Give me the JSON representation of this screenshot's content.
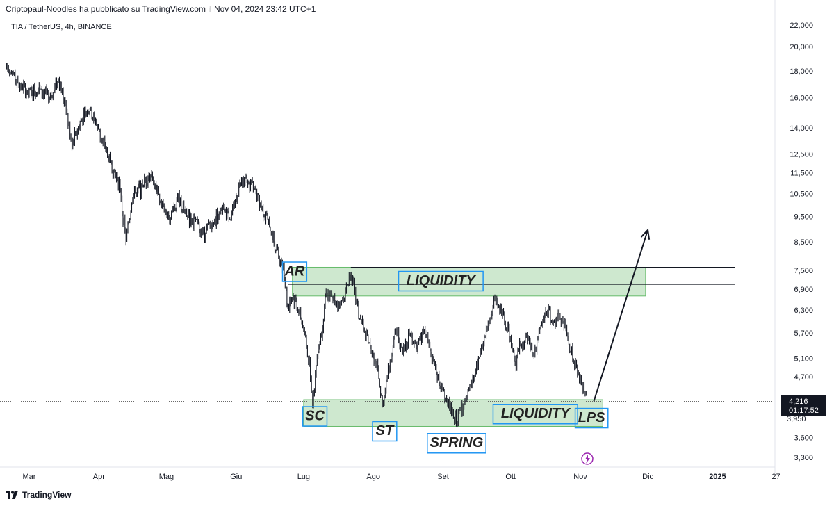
{
  "header": {
    "published": "Criptopaul-Noodles ha pubblicato su TradingView.com il Nov 04, 2024 23:42 UTC+1",
    "symbol": "TIA / TetherUS, 4h, BINANCE"
  },
  "footer": {
    "brand": "TradingView"
  },
  "colors": {
    "candle": "#131722",
    "zone": "#a5d6a7",
    "box_border": "#2196f3",
    "current_price_bg": "#131722"
  },
  "current_price": {
    "value": "4,216",
    "countdown": "01:17:52",
    "partial": "3,950"
  },
  "chart_data": {
    "type": "candlestick",
    "y_scale": "log",
    "ylim": [
      3100,
      23000
    ],
    "y_ticks": [
      "22,000",
      "20,000",
      "18,000",
      "16,000",
      "14,000",
      "12,500",
      "11,500",
      "10,500",
      "9,500",
      "8,500",
      "7,500",
      "6,900",
      "6,300",
      "5,700",
      "5,100",
      "4,700",
      "3,600",
      "3,300"
    ],
    "x_ticks": [
      "Mar",
      "Apr",
      "Mag",
      "Giu",
      "Lug",
      "Ago",
      "Set",
      "Ott",
      "Nov",
      "Dic",
      "2025",
      "27"
    ],
    "x_tick_dates": [
      "2024-03-01",
      "2024-04-01",
      "2024-05-01",
      "2024-06-01",
      "2024-07-01",
      "2024-08-01",
      "2024-09-01",
      "2024-10-01",
      "2024-11-01",
      "2024-12-01",
      "2025-01-01",
      "2025-01-27"
    ],
    "series": [
      {
        "values": [
          [
            "2024-02-20",
            18500
          ],
          [
            "2024-02-25",
            17000
          ],
          [
            "2024-03-01",
            16200
          ],
          [
            "2024-03-05",
            16800
          ],
          [
            "2024-03-10",
            15800
          ],
          [
            "2024-03-14",
            17500
          ],
          [
            "2024-03-17",
            15500
          ],
          [
            "2024-03-20",
            13000
          ],
          [
            "2024-03-24",
            14500
          ],
          [
            "2024-03-28",
            15300
          ],
          [
            "2024-04-02",
            13500
          ],
          [
            "2024-04-06",
            12000
          ],
          [
            "2024-04-10",
            11000
          ],
          [
            "2024-04-13",
            8500
          ],
          [
            "2024-04-16",
            10500
          ],
          [
            "2024-04-20",
            10800
          ],
          [
            "2024-04-24",
            11500
          ],
          [
            "2024-04-28",
            10200
          ],
          [
            "2024-05-02",
            9500
          ],
          [
            "2024-05-06",
            10200
          ],
          [
            "2024-05-10",
            9600
          ],
          [
            "2024-05-14",
            9200
          ],
          [
            "2024-05-18",
            8800
          ],
          [
            "2024-05-22",
            9300
          ],
          [
            "2024-05-26",
            9900
          ],
          [
            "2024-05-30",
            9500
          ],
          [
            "2024-06-03",
            11200
          ],
          [
            "2024-06-07",
            11000
          ],
          [
            "2024-06-11",
            10300
          ],
          [
            "2024-06-15",
            9300
          ],
          [
            "2024-06-19",
            8200
          ],
          [
            "2024-06-22",
            7600
          ],
          [
            "2024-06-24",
            6400
          ],
          [
            "2024-06-26",
            6700
          ],
          [
            "2024-06-28",
            6500
          ],
          [
            "2024-07-01",
            5800
          ],
          [
            "2024-07-04",
            4800
          ],
          [
            "2024-07-05",
            4150
          ],
          [
            "2024-07-07",
            5200
          ],
          [
            "2024-07-09",
            5800
          ],
          [
            "2024-07-11",
            6800
          ],
          [
            "2024-07-14",
            6600
          ],
          [
            "2024-07-17",
            6400
          ],
          [
            "2024-07-20",
            6900
          ],
          [
            "2024-07-22",
            7500
          ],
          [
            "2024-07-25",
            6300
          ],
          [
            "2024-07-28",
            5700
          ],
          [
            "2024-07-31",
            5300
          ],
          [
            "2024-08-03",
            4800
          ],
          [
            "2024-08-05",
            4150
          ],
          [
            "2024-08-08",
            4900
          ],
          [
            "2024-08-11",
            5800
          ],
          [
            "2024-08-14",
            5200
          ],
          [
            "2024-08-17",
            5700
          ],
          [
            "2024-08-20",
            5400
          ],
          [
            "2024-08-24",
            5800
          ],
          [
            "2024-08-27",
            5100
          ],
          [
            "2024-08-31",
            4500
          ],
          [
            "2024-09-03",
            4200
          ],
          [
            "2024-09-06",
            3850
          ],
          [
            "2024-09-09",
            4100
          ],
          [
            "2024-09-12",
            4300
          ],
          [
            "2024-09-15",
            4700
          ],
          [
            "2024-09-18",
            5300
          ],
          [
            "2024-09-21",
            5900
          ],
          [
            "2024-09-24",
            6600
          ],
          [
            "2024-09-27",
            6200
          ],
          [
            "2024-09-30",
            5800
          ],
          [
            "2024-10-03",
            4950
          ],
          [
            "2024-10-05",
            5400
          ],
          [
            "2024-10-08",
            5600
          ],
          [
            "2024-10-11",
            5200
          ],
          [
            "2024-10-14",
            5700
          ],
          [
            "2024-10-17",
            6300
          ],
          [
            "2024-10-20",
            6000
          ],
          [
            "2024-10-23",
            6100
          ],
          [
            "2024-10-26",
            5700
          ],
          [
            "2024-10-29",
            5000
          ],
          [
            "2024-11-01",
            4600
          ],
          [
            "2024-11-04",
            4216
          ]
        ]
      }
    ],
    "zones": [
      {
        "name": "top",
        "from": "2024-06-26",
        "to": "2024-11-30",
        "low": 6700,
        "high": 7600
      },
      {
        "name": "bottom",
        "from": "2024-07-01",
        "to": "2024-11-11",
        "low": 3780,
        "high": 4250
      }
    ],
    "hlines": [
      {
        "price": 7600,
        "from": "2024-07-22",
        "to": "2025-01-10"
      },
      {
        "price": 7050,
        "from": "2024-06-24",
        "to": "2025-01-10"
      }
    ],
    "arrow": {
      "from": [
        "2024-11-07",
        4220
      ],
      "to": [
        "2024-12-01",
        8950
      ]
    },
    "labels": [
      {
        "text": "AR",
        "date": "2024-06-27",
        "price": 7450,
        "size": 20
      },
      {
        "text": "LIQUIDITY",
        "date": "2024-08-31",
        "price": 7150,
        "size": 20
      },
      {
        "text": "SC",
        "date": "2024-07-06",
        "price": 3950,
        "size": 20
      },
      {
        "text": "ST",
        "date": "2024-08-06",
        "price": 3700,
        "size": 20
      },
      {
        "text": "SPRING",
        "date": "2024-09-07",
        "price": 3510,
        "size": 20
      },
      {
        "text": "LIQUIDITY",
        "date": "2024-10-12",
        "price": 3990,
        "size": 20
      },
      {
        "text": "LPS",
        "date": "2024-11-06",
        "price": 3920,
        "size": 20
      }
    ]
  }
}
